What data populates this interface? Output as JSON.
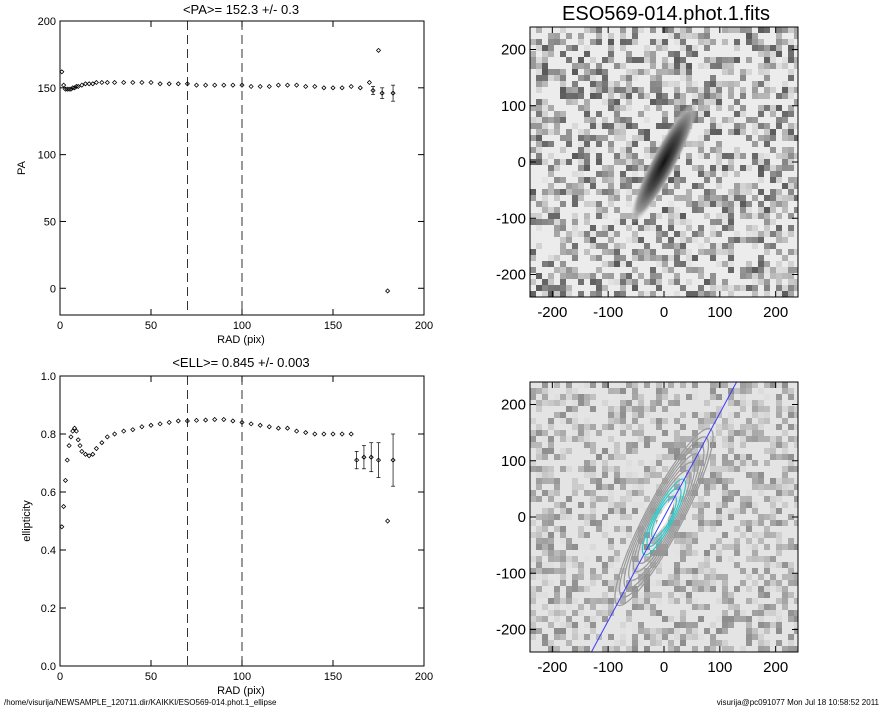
{
  "chart_data": [
    {
      "type": "scatter",
      "title": "<PA>= 152.3 +/-   0.3",
      "xlabel": "RAD (pix)",
      "ylabel": "PA",
      "xlim": [
        0,
        200
      ],
      "ylim": [
        -20,
        200
      ],
      "xticks": [
        "0",
        "50",
        "100",
        "150",
        "200"
      ],
      "yticks": [
        "0",
        "50",
        "100",
        "150",
        "200"
      ],
      "vlines": [
        70,
        100
      ],
      "grid": false,
      "series": [
        {
          "marker": "diamond",
          "x": [
            1,
            2,
            3,
            4,
            5,
            6,
            7,
            8,
            9,
            10,
            12,
            14,
            16,
            18,
            20,
            23,
            26,
            30,
            35,
            40,
            45,
            50,
            55,
            60,
            65,
            70,
            75,
            80,
            85,
            90,
            95,
            100,
            105,
            110,
            115,
            120,
            125,
            130,
            135,
            140,
            145,
            150,
            155,
            160,
            165,
            170,
            175,
            180
          ],
          "y": [
            162,
            152,
            149,
            149,
            149,
            149,
            150,
            150,
            151,
            151,
            152,
            153,
            153,
            153,
            154,
            154,
            154,
            154,
            154,
            154,
            154,
            154,
            153,
            153,
            153,
            153,
            152,
            152,
            152,
            152,
            152,
            152,
            151,
            151,
            151,
            152,
            152,
            152,
            151,
            151,
            150,
            150,
            150,
            151,
            150,
            154,
            178,
            -2
          ],
          "errors": [
            0,
            0,
            0,
            0,
            0,
            0,
            0,
            0,
            0,
            0,
            0,
            0,
            0,
            0,
            0,
            0,
            0,
            0,
            0,
            0,
            0,
            0,
            0,
            0,
            0,
            0,
            0,
            0,
            0,
            0,
            0,
            0,
            0,
            0,
            0,
            0,
            0,
            0,
            0,
            0,
            0,
            0,
            0,
            0,
            0,
            0,
            0,
            0
          ]
        },
        {
          "marker": "diamond-errorbar",
          "x": [
            172,
            177,
            183
          ],
          "y": [
            148,
            146,
            146
          ],
          "errors": [
            3,
            4,
            6
          ]
        }
      ]
    },
    {
      "type": "scatter",
      "title": "<ELL>= 0.845 +/-  0.003",
      "xlabel": "RAD (pix)",
      "ylabel": "ellipticity",
      "xlim": [
        0,
        200
      ],
      "ylim": [
        0,
        1
      ],
      "xticks": [
        "0",
        "50",
        "100",
        "150",
        "200"
      ],
      "yticks": [
        "0.0",
        "0.2",
        "0.4",
        "0.6",
        "0.8",
        "1.0"
      ],
      "vlines": [
        70,
        100
      ],
      "grid": false,
      "series": [
        {
          "marker": "diamond",
          "x": [
            1,
            2,
            3,
            4,
            5,
            6,
            7,
            8,
            9,
            10,
            11,
            12,
            14,
            16,
            18,
            20,
            23,
            26,
            30,
            35,
            40,
            45,
            50,
            55,
            60,
            65,
            70,
            75,
            80,
            85,
            90,
            95,
            100,
            105,
            110,
            115,
            120,
            125,
            130,
            135,
            140,
            145,
            150,
            155,
            160,
            180
          ],
          "y": [
            0.48,
            0.55,
            0.64,
            0.71,
            0.76,
            0.79,
            0.81,
            0.82,
            0.81,
            0.78,
            0.76,
            0.74,
            0.73,
            0.725,
            0.73,
            0.75,
            0.77,
            0.79,
            0.8,
            0.81,
            0.815,
            0.825,
            0.83,
            0.835,
            0.84,
            0.845,
            0.845,
            0.847,
            0.848,
            0.85,
            0.85,
            0.845,
            0.84,
            0.835,
            0.83,
            0.825,
            0.82,
            0.82,
            0.81,
            0.805,
            0.8,
            0.8,
            0.8,
            0.8,
            0.8,
            0.5
          ],
          "errors": [
            0,
            0,
            0,
            0,
            0,
            0,
            0,
            0,
            0,
            0,
            0,
            0,
            0,
            0,
            0,
            0,
            0,
            0,
            0,
            0,
            0,
            0,
            0,
            0,
            0,
            0,
            0,
            0,
            0,
            0,
            0,
            0,
            0,
            0,
            0,
            0,
            0,
            0,
            0,
            0,
            0,
            0,
            0,
            0,
            0,
            0
          ]
        },
        {
          "marker": "diamond-errorbar",
          "x": [
            163,
            167,
            171,
            175,
            183
          ],
          "y": [
            0.71,
            0.72,
            0.72,
            0.71,
            0.71
          ],
          "errors": [
            0.03,
            0.04,
            0.05,
            0.06,
            0.09
          ]
        }
      ]
    },
    {
      "type": "image",
      "title": "ESO569-014.phot.1.fits",
      "xlim": [
        -240,
        240
      ],
      "ylim": [
        -240,
        240
      ],
      "xticks": [
        "-200",
        "-100",
        "0",
        "100",
        "200"
      ],
      "yticks": [
        "-200",
        "-100",
        "0",
        "100",
        "200"
      ],
      "galaxy": {
        "x0": 0,
        "y0": 0,
        "major_axis_length": 250,
        "minor_axis_length": 45,
        "position_angle_deg": 152.3
      },
      "colors": {
        "background": "#ececec",
        "galaxy_core": "#1a1a1a"
      }
    },
    {
      "type": "image",
      "title": "",
      "xlim": [
        -240,
        240
      ],
      "ylim": [
        -240,
        240
      ],
      "xticks": [
        "-200",
        "-100",
        "0",
        "100",
        "200"
      ],
      "yticks": [
        "-200",
        "-100",
        "0",
        "100",
        "200"
      ],
      "contours": {
        "levels": 9,
        "x0": 0,
        "y0": 0,
        "position_angle_deg": 152.3,
        "ellipticity": 0.845
      },
      "major_axis_line": {
        "x": [
          -130,
          130
        ],
        "y": [
          -240,
          240
        ]
      },
      "colors": {
        "background": "#e4e4e4",
        "contour": "#9a9a9a",
        "inner_contour": "#2ec7c7",
        "center": "#ffffff",
        "line": "#3a3aff"
      }
    }
  ],
  "footer": {
    "left": "/home/visurija/NEWSAMPLE_120711.dir/KAIKKI/ESO569-014.phot.1_ellipse",
    "right": "visurija@pc091077  Mon Jul 18 10:58:52 2011"
  }
}
